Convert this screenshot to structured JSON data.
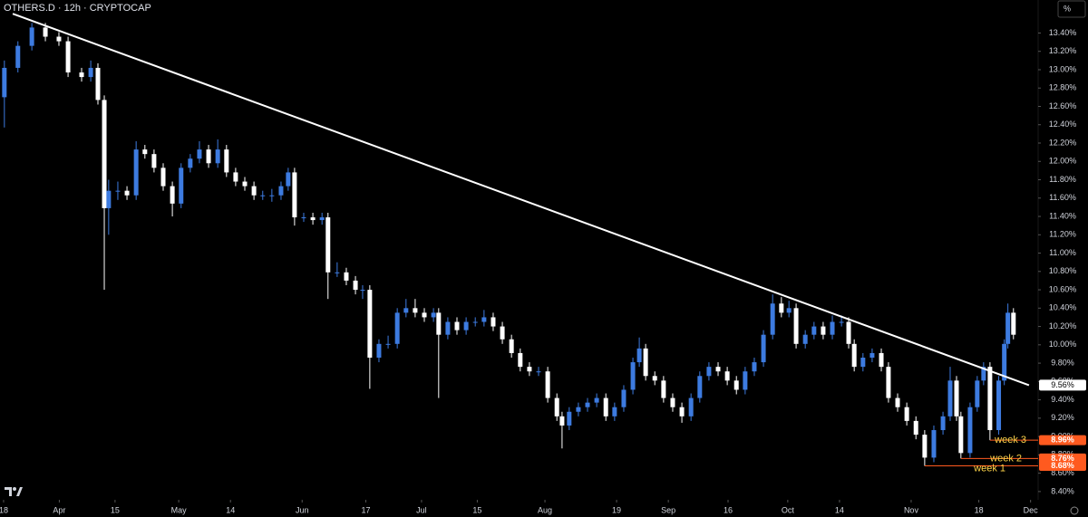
{
  "chart_data": {
    "type": "candlestick",
    "title": "OTHERS.D · 12h · CRYPTOCAP",
    "unit_label": "%",
    "up_color": "#3d7be0",
    "down_color": "#ffffff",
    "xlim": [
      -0.9,
      259.9
    ],
    "ylim": [
      8.31,
      13.76
    ],
    "xticks": [
      {
        "value": 0,
        "label": "18"
      },
      {
        "value": 14,
        "label": "Apr"
      },
      {
        "value": 28,
        "label": "15"
      },
      {
        "value": 44,
        "label": "May"
      },
      {
        "value": 57,
        "label": "14"
      },
      {
        "value": 75,
        "label": "Jun"
      },
      {
        "value": 91,
        "label": "17"
      },
      {
        "value": 105,
        "label": "Jul"
      },
      {
        "value": 119,
        "label": "15"
      },
      {
        "value": 136,
        "label": "Aug"
      },
      {
        "value": 154,
        "label": "19"
      },
      {
        "value": 167,
        "label": "Sep"
      },
      {
        "value": 182,
        "label": "16"
      },
      {
        "value": 197,
        "label": "Oct"
      },
      {
        "value": 210,
        "label": "14"
      },
      {
        "value": 228,
        "label": "Nov"
      },
      {
        "value": 245,
        "label": "18"
      },
      {
        "value": 258,
        "label": "Dec"
      }
    ],
    "yticks": [
      {
        "value": 8.4,
        "label": "8.40%"
      },
      {
        "value": 8.6,
        "label": "8.60%"
      },
      {
        "value": 8.8,
        "label": "8.80%"
      },
      {
        "value": 9.0,
        "label": "9.00%"
      },
      {
        "value": 9.2,
        "label": "9.20%"
      },
      {
        "value": 9.4,
        "label": "9.40%"
      },
      {
        "value": 9.6,
        "label": "9.60%"
      },
      {
        "value": 9.8,
        "label": "9.80%"
      },
      {
        "value": 10.0,
        "label": "10.00%"
      },
      {
        "value": 10.2,
        "label": "10.20%"
      },
      {
        "value": 10.4,
        "label": "10.40%"
      },
      {
        "value": 10.6,
        "label": "10.60%"
      },
      {
        "value": 10.8,
        "label": "10.80%"
      },
      {
        "value": 11.0,
        "label": "11.00%"
      },
      {
        "value": 11.2,
        "label": "11.20%"
      },
      {
        "value": 11.4,
        "label": "11.40%"
      },
      {
        "value": 11.6,
        "label": "11.60%"
      },
      {
        "value": 11.8,
        "label": "11.80%"
      },
      {
        "value": 12.0,
        "label": "12.00%"
      },
      {
        "value": 12.2,
        "label": "12.20%"
      },
      {
        "value": 12.4,
        "label": "12.40%"
      },
      {
        "value": 12.6,
        "label": "12.60%"
      },
      {
        "value": 12.8,
        "label": "12.80%"
      },
      {
        "value": 13.0,
        "label": "13.00%"
      },
      {
        "value": 13.2,
        "label": "13.20%"
      },
      {
        "value": 13.4,
        "label": "13.40%"
      }
    ],
    "x": [
      0.2,
      3.6,
      7.1,
      10.5,
      13.9,
      16.2,
      19.6,
      21.9,
      23.7,
      25.3,
      26.4,
      28.7,
      31.0,
      33.3,
      35.5,
      37.8,
      40.1,
      42.4,
      44.6,
      46.9,
      49.2,
      51.5,
      53.8,
      56.0,
      58.3,
      60.6,
      62.9,
      65.1,
      67.4,
      69.7,
      71.5,
      73.1,
      75.4,
      77.7,
      80.0,
      81.5,
      83.8,
      86.1,
      88.4,
      90.2,
      92.0,
      94.3,
      96.6,
      98.9,
      101.1,
      103.4,
      105.7,
      108.0,
      109.3,
      111.6,
      113.9,
      116.2,
      118.5,
      120.7,
      123.0,
      125.3,
      127.6,
      129.8,
      132.1,
      134.4,
      136.7,
      139.0,
      140.3,
      142.1,
      144.4,
      146.7,
      149.0,
      151.3,
      153.5,
      155.8,
      158.1,
      159.7,
      161.3,
      163.6,
      165.8,
      168.1,
      170.4,
      172.7,
      174.9,
      177.2,
      179.5,
      181.8,
      184.1,
      186.3,
      188.6,
      190.9,
      193.2,
      195.4,
      197.3,
      199.1,
      201.4,
      203.6,
      205.9,
      208.2,
      210.5,
      212.3,
      213.7,
      215.9,
      218.2,
      220.5,
      222.3,
      224.6,
      226.9,
      229.2,
      231.4,
      233.7,
      236.0,
      237.8,
      239.4,
      240.5,
      242.8,
      244.6,
      246.2,
      247.8,
      250.0,
      251.4,
      252.3,
      253.7
    ],
    "ohlc": [
      [
        12.7,
        13.1,
        12.37,
        13.02
      ],
      [
        13.02,
        13.31,
        12.97,
        13.26
      ],
      [
        13.26,
        13.51,
        13.21,
        13.46
      ],
      [
        13.46,
        13.51,
        13.31,
        13.36
      ],
      [
        13.36,
        13.41,
        13.26,
        13.31
      ],
      [
        13.31,
        13.36,
        12.92,
        12.97
      ],
      [
        12.97,
        13.02,
        12.87,
        12.92
      ],
      [
        12.92,
        13.1,
        12.87,
        13.02
      ],
      [
        13.02,
        13.07,
        12.62,
        12.67
      ],
      [
        12.67,
        12.72,
        10.6,
        11.49
      ],
      [
        11.49,
        11.8,
        11.2,
        11.68
      ],
      [
        11.68,
        11.78,
        11.58,
        11.68
      ],
      [
        11.68,
        11.73,
        11.58,
        11.63
      ],
      [
        11.63,
        12.22,
        11.58,
        12.13
      ],
      [
        12.13,
        12.18,
        12.03,
        12.08
      ],
      [
        12.08,
        12.13,
        11.88,
        11.93
      ],
      [
        11.93,
        11.98,
        11.68,
        11.73
      ],
      [
        11.73,
        11.78,
        11.4,
        11.54
      ],
      [
        11.54,
        11.98,
        11.49,
        11.93
      ],
      [
        11.93,
        12.08,
        11.88,
        12.03
      ],
      [
        12.03,
        12.22,
        11.98,
        12.13
      ],
      [
        12.13,
        12.18,
        11.93,
        11.98
      ],
      [
        11.98,
        12.24,
        11.93,
        12.13
      ],
      [
        12.13,
        12.18,
        11.83,
        11.88
      ],
      [
        11.88,
        11.93,
        11.73,
        11.78
      ],
      [
        11.78,
        11.83,
        11.68,
        11.73
      ],
      [
        11.73,
        11.78,
        11.58,
        11.63
      ],
      [
        11.63,
        11.68,
        11.58,
        11.63
      ],
      [
        11.63,
        11.7,
        11.56,
        11.63
      ],
      [
        11.63,
        11.78,
        11.58,
        11.73
      ],
      [
        11.73,
        11.93,
        11.68,
        11.88
      ],
      [
        11.88,
        11.93,
        11.3,
        11.39
      ],
      [
        11.39,
        11.44,
        11.34,
        11.39
      ],
      [
        11.39,
        11.44,
        11.31,
        11.36
      ],
      [
        11.36,
        11.44,
        11.31,
        11.39
      ],
      [
        11.39,
        11.44,
        10.5,
        10.79
      ],
      [
        10.79,
        10.9,
        10.74,
        10.79
      ],
      [
        10.79,
        10.84,
        10.65,
        10.7
      ],
      [
        10.7,
        10.75,
        10.55,
        10.6
      ],
      [
        10.6,
        10.65,
        10.5,
        10.6
      ],
      [
        10.6,
        10.65,
        9.52,
        9.86
      ],
      [
        9.86,
        10.06,
        9.81,
        10.01
      ],
      [
        10.01,
        10.1,
        9.96,
        10.01
      ],
      [
        10.01,
        10.4,
        9.96,
        10.35
      ],
      [
        10.35,
        10.5,
        10.3,
        10.4
      ],
      [
        10.4,
        10.5,
        10.3,
        10.35
      ],
      [
        10.35,
        10.4,
        10.25,
        10.3
      ],
      [
        10.3,
        10.4,
        10.25,
        10.35
      ],
      [
        10.35,
        10.4,
        9.42,
        10.11
      ],
      [
        10.11,
        10.3,
        10.06,
        10.25
      ],
      [
        10.25,
        10.3,
        10.11,
        10.16
      ],
      [
        10.16,
        10.3,
        10.11,
        10.25
      ],
      [
        10.25,
        10.3,
        10.2,
        10.25
      ],
      [
        10.25,
        10.38,
        10.2,
        10.3
      ],
      [
        10.3,
        10.35,
        10.15,
        10.2
      ],
      [
        10.2,
        10.25,
        10.01,
        10.06
      ],
      [
        10.06,
        10.11,
        9.86,
        9.91
      ],
      [
        9.91,
        9.96,
        9.71,
        9.76
      ],
      [
        9.76,
        9.81,
        9.66,
        9.71
      ],
      [
        9.71,
        9.76,
        9.66,
        9.71
      ],
      [
        9.71,
        9.76,
        9.37,
        9.42
      ],
      [
        9.42,
        9.47,
        9.17,
        9.22
      ],
      [
        9.22,
        9.27,
        8.87,
        9.12
      ],
      [
        9.12,
        9.32,
        9.07,
        9.27
      ],
      [
        9.27,
        9.37,
        9.22,
        9.32
      ],
      [
        9.32,
        9.42,
        9.27,
        9.37
      ],
      [
        9.37,
        9.47,
        9.32,
        9.42
      ],
      [
        9.42,
        9.47,
        9.17,
        9.22
      ],
      [
        9.22,
        9.37,
        9.17,
        9.32
      ],
      [
        9.32,
        9.56,
        9.27,
        9.51
      ],
      [
        9.51,
        9.86,
        9.46,
        9.81
      ],
      [
        9.81,
        10.08,
        9.76,
        9.96
      ],
      [
        9.96,
        10.01,
        9.61,
        9.66
      ],
      [
        9.66,
        9.71,
        9.56,
        9.61
      ],
      [
        9.61,
        9.66,
        9.37,
        9.42
      ],
      [
        9.42,
        9.47,
        9.27,
        9.32
      ],
      [
        9.32,
        9.37,
        9.15,
        9.22
      ],
      [
        9.22,
        9.47,
        9.17,
        9.42
      ],
      [
        9.42,
        9.71,
        9.37,
        9.66
      ],
      [
        9.66,
        9.81,
        9.61,
        9.76
      ],
      [
        9.76,
        9.81,
        9.66,
        9.71
      ],
      [
        9.71,
        9.76,
        9.56,
        9.61
      ],
      [
        9.61,
        9.66,
        9.46,
        9.51
      ],
      [
        9.51,
        9.76,
        9.46,
        9.71
      ],
      [
        9.71,
        9.86,
        9.66,
        9.81
      ],
      [
        9.81,
        10.16,
        9.76,
        10.11
      ],
      [
        10.11,
        10.55,
        10.06,
        10.45
      ],
      [
        10.45,
        10.52,
        10.3,
        10.35
      ],
      [
        10.35,
        10.48,
        10.3,
        10.4
      ],
      [
        10.4,
        10.45,
        9.96,
        10.01
      ],
      [
        10.01,
        10.16,
        9.96,
        10.11
      ],
      [
        10.11,
        10.25,
        10.06,
        10.2
      ],
      [
        10.2,
        10.25,
        10.06,
        10.11
      ],
      [
        10.11,
        10.32,
        10.06,
        10.25
      ],
      [
        10.25,
        10.32,
        10.2,
        10.25
      ],
      [
        10.25,
        10.3,
        9.96,
        10.01
      ],
      [
        10.01,
        10.06,
        9.71,
        9.76
      ],
      [
        9.76,
        9.91,
        9.71,
        9.86
      ],
      [
        9.86,
        9.96,
        9.81,
        9.91
      ],
      [
        9.91,
        9.96,
        9.71,
        9.76
      ],
      [
        9.76,
        9.81,
        9.37,
        9.42
      ],
      [
        9.42,
        9.47,
        9.27,
        9.32
      ],
      [
        9.32,
        9.37,
        9.12,
        9.17
      ],
      [
        9.17,
        9.22,
        8.97,
        9.02
      ],
      [
        9.02,
        9.07,
        8.68,
        8.77
      ],
      [
        8.77,
        9.12,
        8.72,
        9.07
      ],
      [
        9.07,
        9.27,
        9.02,
        9.22
      ],
      [
        9.22,
        9.76,
        9.17,
        9.61
      ],
      [
        9.61,
        9.66,
        9.17,
        9.22
      ],
      [
        9.22,
        9.27,
        8.76,
        8.82
      ],
      [
        8.82,
        9.37,
        8.77,
        9.32
      ],
      [
        9.32,
        9.66,
        9.27,
        9.61
      ],
      [
        9.61,
        9.81,
        9.56,
        9.76
      ],
      [
        9.76,
        9.81,
        8.96,
        9.07
      ],
      [
        9.07,
        9.66,
        9.02,
        9.61
      ],
      [
        9.61,
        10.06,
        9.56,
        10.01
      ],
      [
        10.01,
        10.45,
        9.96,
        10.35
      ],
      [
        10.35,
        10.4,
        10.06,
        10.11
      ]
    ],
    "trendline": {
      "color": "#ffffff",
      "x": [
        2.3,
        257.6
      ],
      "y": [
        13.61,
        9.56
      ]
    },
    "price_label": {
      "value": 9.56,
      "label": "9.56%"
    },
    "levels": [
      {
        "name": "week 3",
        "value": 8.96,
        "label": "8.96%",
        "x": 247.8,
        "color": "#ff5a1f"
      },
      {
        "name": "week 2",
        "value": 8.76,
        "label": "8.76%",
        "x": 240.5,
        "color": "#ff5a1f"
      },
      {
        "name": "week 1",
        "value": 8.68,
        "label": "8.68%",
        "x": 231.4,
        "color": "#ff5a1f"
      }
    ],
    "level_text_color": "#ffd54a"
  }
}
